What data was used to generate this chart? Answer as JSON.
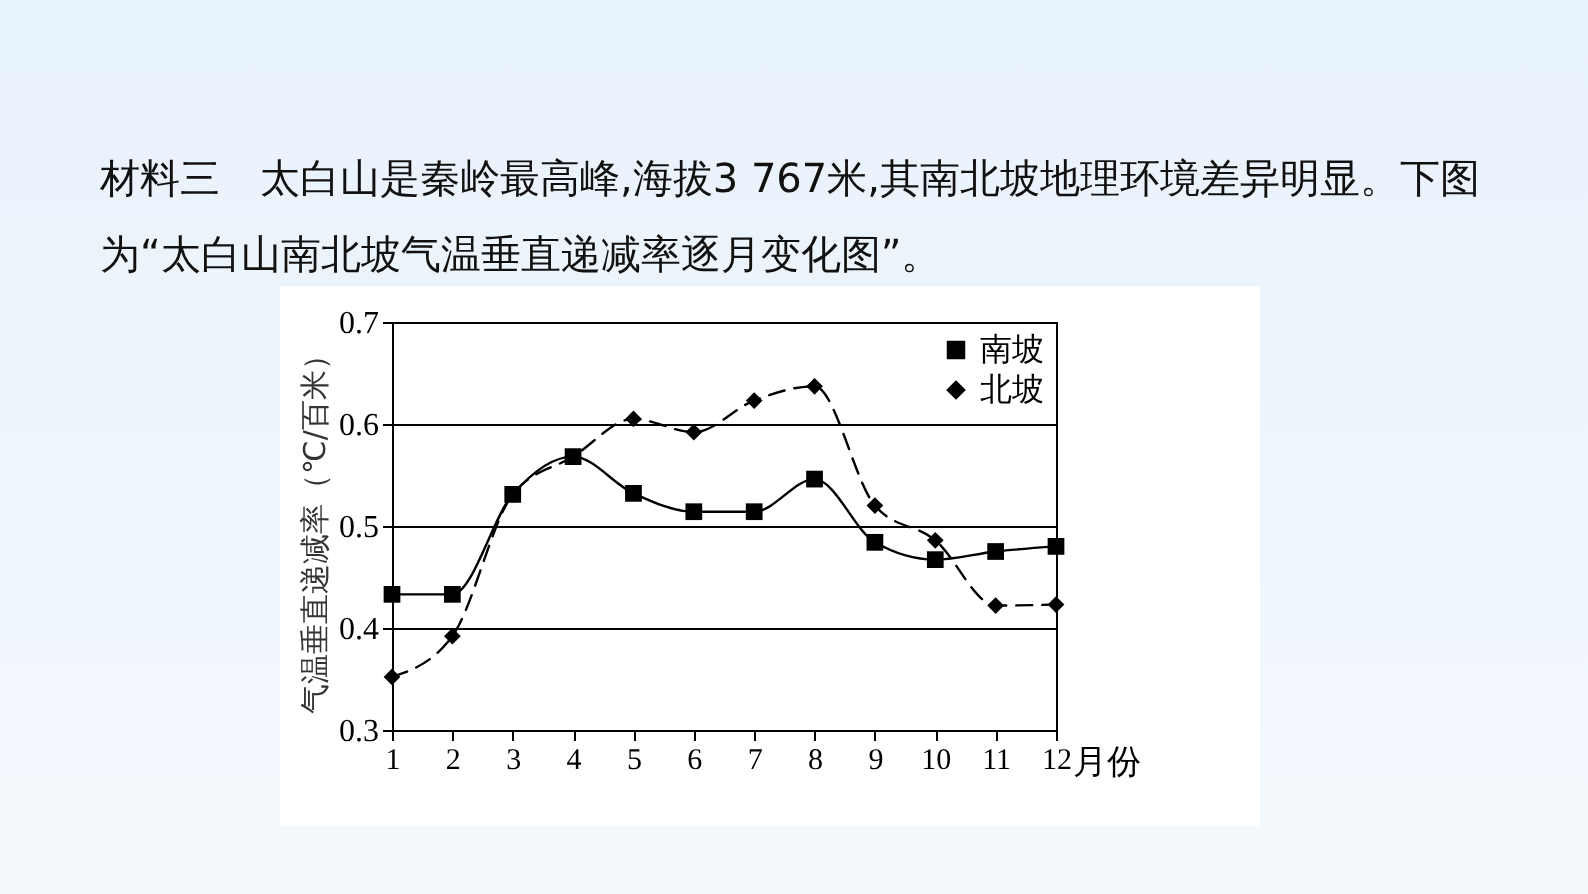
{
  "chart_data": {
    "type": "line",
    "title": "材料三　太白山是秦岭最高峰,海拔3 767米,其南北坡地理环境差异明显。下图为“太白山南北坡气温垂直递减率逐月变化图”。",
    "xlabel": "月份",
    "ylabel": "气温垂直递减率（℃/百米）",
    "x": [
      1,
      2,
      3,
      4,
      5,
      6,
      7,
      8,
      9,
      10,
      11,
      12
    ],
    "xlim": [
      1,
      12
    ],
    "xticks": [
      1,
      2,
      3,
      4,
      5,
      6,
      7,
      8,
      9,
      10,
      11,
      12
    ],
    "ylim": [
      0.3,
      0.7
    ],
    "yticks": [
      0.3,
      0.4,
      0.5,
      0.6,
      0.7
    ],
    "grid": "y",
    "legend": "top right",
    "series": [
      {
        "name": "南坡",
        "color": "#000000",
        "marker": "square",
        "line_style": "solid",
        "values": [
          0.433,
          0.433,
          0.531,
          0.568,
          0.532,
          0.514,
          0.514,
          0.546,
          0.484,
          0.467,
          0.475,
          0.48
        ]
      },
      {
        "name": "北坡",
        "color": "#000000",
        "marker": "diamond",
        "line_style": "dashed",
        "values": [
          0.352,
          0.392,
          0.531,
          0.568,
          0.605,
          0.592,
          0.623,
          0.637,
          0.52,
          0.486,
          0.422,
          0.423
        ]
      }
    ]
  }
}
